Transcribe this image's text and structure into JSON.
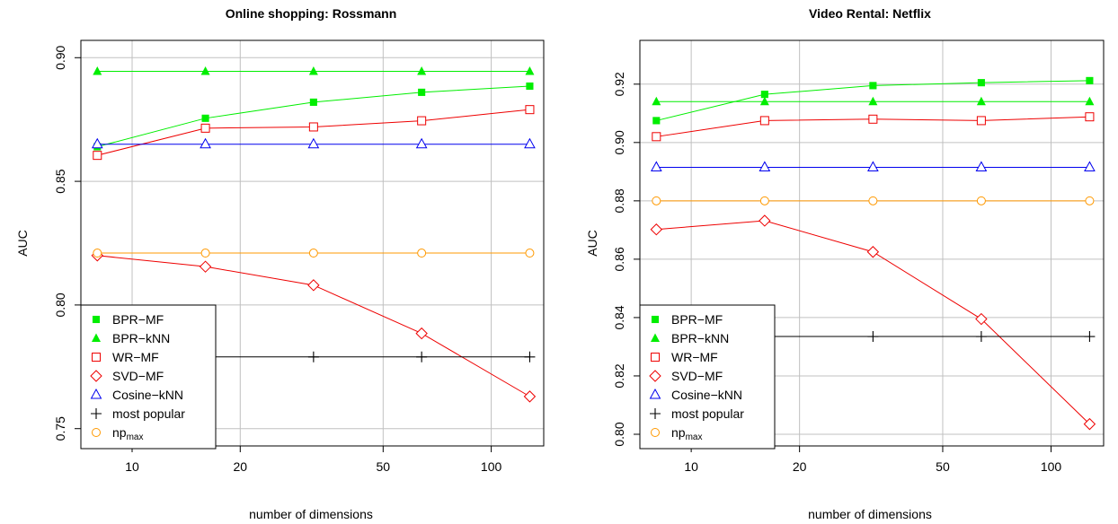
{
  "chart_data": [
    {
      "type": "line",
      "title": "Online shopping: Rossmann",
      "xlabel": "number of dimensions",
      "ylabel": "AUC",
      "x_scale": "log",
      "xlim": [
        7.2,
        140
      ],
      "ylim": [
        0.743,
        0.907
      ],
      "x_ticks": [
        10,
        20,
        50,
        100
      ],
      "y_ticks": [
        0.75,
        0.8,
        0.85,
        0.9
      ],
      "grid": true,
      "legend_position": "bottom-left",
      "x": [
        8,
        16,
        32,
        64,
        128
      ],
      "series": [
        {
          "name": "BPR−MF",
          "color": "#00ee00",
          "marker": "filled-square",
          "values": [
            0.864,
            0.8755,
            0.882,
            0.886,
            0.8885
          ]
        },
        {
          "name": "BPR−kNN",
          "color": "#00ee00",
          "marker": "filled-triangle",
          "values": [
            0.8945,
            0.8945,
            0.8945,
            0.8945,
            0.8945
          ]
        },
        {
          "name": "WR−MF",
          "color": "#ee0000",
          "marker": "open-square",
          "values": [
            0.8605,
            0.8715,
            0.872,
            0.8745,
            0.879
          ]
        },
        {
          "name": "SVD−MF",
          "color": "#ee0000",
          "marker": "open-diamond",
          "values": [
            0.82,
            0.8155,
            0.808,
            0.7885,
            0.763
          ]
        },
        {
          "name": "Cosine−kNN",
          "color": "#0000ee",
          "marker": "open-triangle",
          "values": [
            0.865,
            0.865,
            0.865,
            0.865,
            0.865
          ]
        },
        {
          "name": "most popular",
          "color": "#000000",
          "marker": "plus",
          "values": [
            0.779,
            0.779,
            0.779,
            0.779,
            0.779
          ]
        },
        {
          "name": "np",
          "name_sub": "max",
          "color": "#ff9900",
          "marker": "open-circle",
          "values": [
            0.821,
            0.821,
            0.821,
            0.821,
            0.821
          ]
        }
      ]
    },
    {
      "type": "line",
      "title": "Video Rental: Netflix",
      "xlabel": "number of dimensions",
      "ylabel": "AUC",
      "x_scale": "log",
      "xlim": [
        7.2,
        140
      ],
      "ylim": [
        0.796,
        0.935
      ],
      "x_ticks": [
        10,
        20,
        50,
        100
      ],
      "y_ticks": [
        0.8,
        0.82,
        0.84,
        0.86,
        0.88,
        0.9,
        0.92
      ],
      "grid": true,
      "legend_position": "bottom-left",
      "x": [
        8,
        16,
        32,
        64,
        128
      ],
      "series": [
        {
          "name": "BPR−MF",
          "color": "#00ee00",
          "marker": "filled-square",
          "values": [
            0.9075,
            0.9165,
            0.9195,
            0.9205,
            0.9212
          ]
        },
        {
          "name": "BPR−kNN",
          "color": "#00ee00",
          "marker": "filled-triangle",
          "values": [
            0.914,
            0.914,
            0.914,
            0.914,
            0.914
          ]
        },
        {
          "name": "WR−MF",
          "color": "#ee0000",
          "marker": "open-square",
          "values": [
            0.902,
            0.9075,
            0.908,
            0.9075,
            0.9088
          ]
        },
        {
          "name": "SVD−MF",
          "color": "#ee0000",
          "marker": "open-diamond",
          "values": [
            0.8702,
            0.8732,
            0.8625,
            0.8395,
            0.8035
          ]
        },
        {
          "name": "Cosine−kNN",
          "color": "#0000ee",
          "marker": "open-triangle",
          "values": [
            0.8915,
            0.8915,
            0.8915,
            0.8915,
            0.8915
          ]
        },
        {
          "name": "most popular",
          "color": "#000000",
          "marker": "plus",
          "values": [
            0.8335,
            0.8335,
            0.8335,
            0.8335,
            0.8335
          ]
        },
        {
          "name": "np",
          "name_sub": "max",
          "color": "#ff9900",
          "marker": "open-circle",
          "values": [
            0.88,
            0.88,
            0.88,
            0.88,
            0.88
          ]
        }
      ]
    }
  ]
}
